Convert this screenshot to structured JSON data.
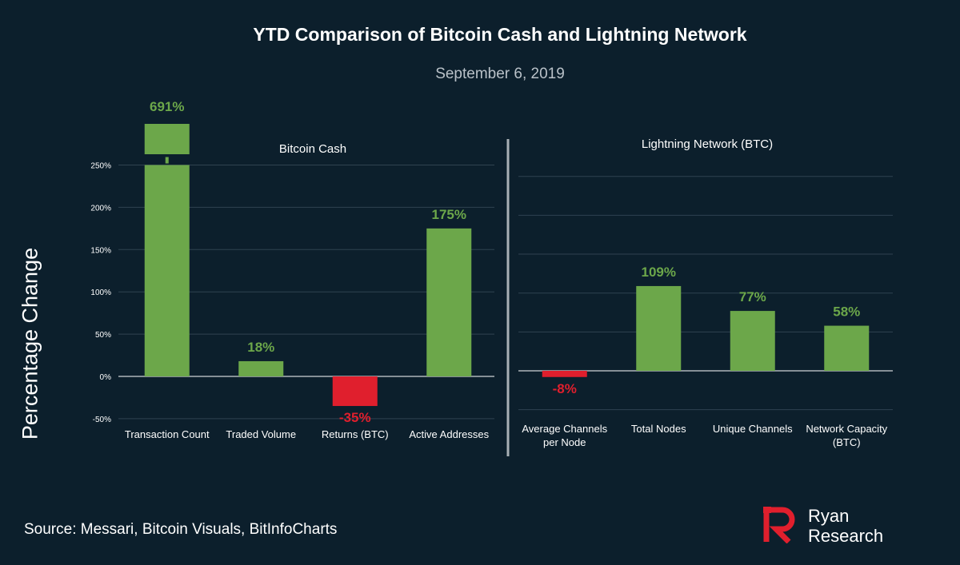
{
  "title": "YTD Comparison of Bitcoin Cash and Lightning Network",
  "subtitle": "September 6, 2019",
  "ylabel": "Percentage Change",
  "source": "Source: Messari, Bitcoin Visuals, BitInfoCharts",
  "brand": {
    "line1": "Ryan",
    "line2": "Research"
  },
  "colors": {
    "background": "#0c1f2c",
    "positive": "#6ca74a",
    "negative": "#e01f2d",
    "brand_red": "#e01f2d",
    "grid": "#2f4250",
    "divider": "#a9b0b5"
  },
  "chart_data": [
    {
      "type": "bar",
      "title": "Bitcoin Cash",
      "categories": [
        "Transaction Count",
        "Traded Volume",
        "Returns (BTC)",
        "Active Addresses"
      ],
      "values": [
        691,
        18,
        -35,
        175
      ],
      "value_labels": [
        "691%",
        "18%",
        "-35%",
        "175%"
      ],
      "ylim": [
        -50,
        250
      ],
      "yticks": [
        -50,
        0,
        50,
        100,
        150,
        200,
        250
      ],
      "ytick_labels": [
        "-50%",
        "0%",
        "50%",
        "100%",
        "150%",
        "200%",
        "250%"
      ],
      "axis_break": true,
      "grid": true
    },
    {
      "type": "bar",
      "title": "Lightning Network (BTC)",
      "categories": [
        [
          "Average Channels",
          "per Node"
        ],
        [
          "Total Nodes"
        ],
        [
          "Unique Channels"
        ],
        [
          "Network Capacity",
          "(BTC)"
        ]
      ],
      "values": [
        -8,
        109,
        77,
        58
      ],
      "value_labels": [
        "-8%",
        "109%",
        "77%",
        "58%"
      ],
      "ylim": [
        -50,
        250
      ],
      "grid": true
    }
  ]
}
